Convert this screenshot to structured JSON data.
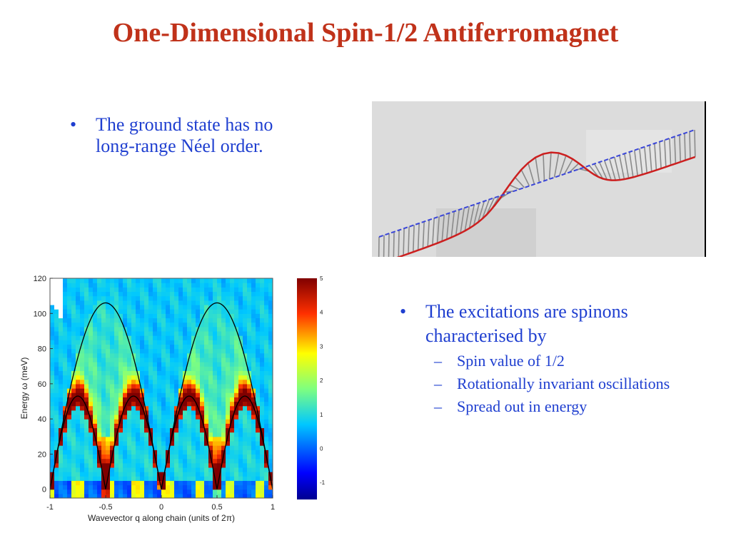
{
  "slide": {
    "title": "One-Dimensional Spin-1/2 Antiferromagnet",
    "bullet_ground": "The ground state has no long-range Néel order.",
    "bullet_excitations": "The excitations are spinons characterised by",
    "sub_bullets": [
      "Spin value of 1/2",
      "Rotationally invariant oscillations",
      "Spread out in energy"
    ]
  },
  "colors": {
    "title": "#c0321a",
    "bullets": "#1f3fd0"
  },
  "chart_data": {
    "type": "heatmap",
    "xlabel": "Wavevector q along chain (units of 2π)",
    "ylabel": "Energy ω (meV)",
    "xlim": [
      -1,
      1
    ],
    "ylim": [
      -5,
      120
    ],
    "x_ticks": [
      "-1",
      "-0.5",
      "0",
      "0.5",
      "1"
    ],
    "y_ticks": [
      "0",
      "20",
      "40",
      "60",
      "80",
      "100",
      "120"
    ],
    "colorbar_ticks": [
      "5",
      "4",
      "3",
      "2",
      "1",
      "0",
      "-1"
    ],
    "colorbar_range": [
      -1.5,
      5
    ],
    "series": [
      {
        "values": "upper spinon boundary: ω = 106·|sin(πq)|, peak 106 meV at q = ±0.5"
      },
      {
        "values": "lower spinon boundary: ω = 53·|sin(2πq)|, peak 53 meV at q = ±0.25, ±0.75"
      }
    ]
  }
}
